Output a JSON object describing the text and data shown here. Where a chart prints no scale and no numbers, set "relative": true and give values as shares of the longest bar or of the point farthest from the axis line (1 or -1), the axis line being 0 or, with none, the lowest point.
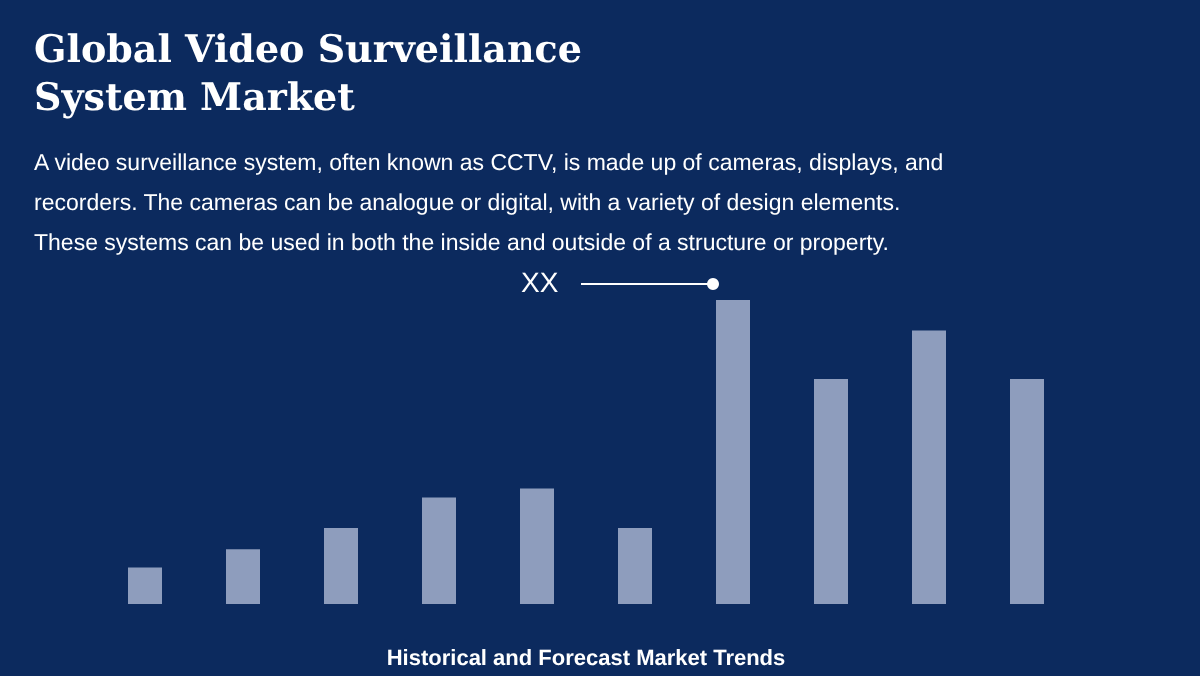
{
  "chart_data": {
    "type": "bar",
    "relative": true,
    "title": "Global Video Surveillance System Market",
    "subtitle": "A video surveillance system, often known as CCTV, is made up of cameras, displays, and recorders. The cameras can be analogue or digital, with a variety of design elements. These systems can be used in both the inside and outside of a structure or property.",
    "xlabel": "Historical and Forecast Market Trends",
    "categories": [
      null,
      null,
      null,
      null,
      null,
      null,
      null,
      null,
      null,
      null
    ],
    "values": [
      0.12,
      0.18,
      0.25,
      0.35,
      0.38,
      0.25,
      1,
      0.74,
      0.9,
      0.74
    ],
    "color": "#8e9dbd",
    "annotations": [
      "XX"
    ]
  }
}
